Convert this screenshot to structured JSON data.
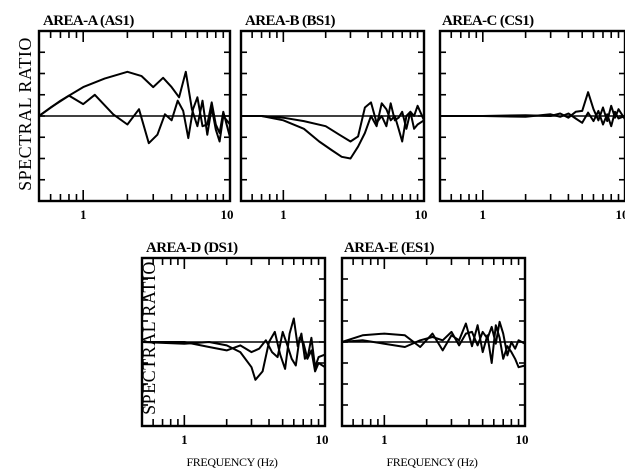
{
  "figure": {
    "ylabel": "SPECTRAL RATIO",
    "xlabel": "FREQUENCY (Hz)"
  },
  "chart_data": [
    {
      "type": "line",
      "title": "AREA-A (AS1)",
      "xscale": "log",
      "xlim": [
        0.5,
        10
      ],
      "ylim": [
        -1,
        1
      ],
      "xticklabels": [
        "1",
        "10"
      ],
      "series": [
        {
          "x": [
            0.5,
            0.7,
            1.0,
            1.4,
            2.0,
            2.5,
            3.0,
            3.5,
            4.0,
            4.5,
            5.0,
            5.5,
            6.0,
            6.5,
            7.0,
            7.5,
            8.0,
            8.5,
            9.0,
            10.0
          ],
          "y": [
            0.0,
            0.18,
            0.34,
            0.44,
            0.52,
            0.47,
            0.34,
            0.45,
            0.34,
            0.22,
            0.52,
            0.08,
            -0.12,
            0.18,
            -0.22,
            0.1,
            -0.16,
            -0.3,
            0.0,
            -0.1
          ]
        },
        {
          "x": [
            0.5,
            0.6,
            0.8,
            1.0,
            1.2,
            1.6,
            2.0,
            2.4,
            2.8,
            3.2,
            3.6,
            4.0,
            4.4,
            4.8,
            5.2,
            5.6,
            6.0,
            6.5,
            7.0,
            7.5,
            8.0,
            8.5,
            9.0,
            10.0
          ],
          "y": [
            0.0,
            0.1,
            0.24,
            0.14,
            0.25,
            0.02,
            -0.1,
            0.08,
            -0.32,
            -0.22,
            0.02,
            -0.05,
            0.18,
            0.06,
            -0.26,
            0.08,
            0.22,
            -0.12,
            -0.1,
            0.16,
            -0.1,
            -0.2,
            0.05,
            -0.25
          ]
        }
      ]
    },
    {
      "type": "line",
      "title": "AREA-B (BS1)",
      "xscale": "log",
      "xlim": [
        0.5,
        10
      ],
      "ylim": [
        -1,
        1
      ],
      "xticklabels": [
        "1",
        "10"
      ],
      "series": [
        {
          "x": [
            0.5,
            0.7,
            1.0,
            1.4,
            2.0,
            2.5,
            3.0,
            3.4,
            3.8,
            4.2,
            4.6,
            5.0,
            5.4,
            5.8,
            6.2,
            6.6,
            7.0,
            7.5,
            8.0,
            8.5,
            9.0,
            10.0
          ],
          "y": [
            0.0,
            0.0,
            -0.02,
            -0.06,
            -0.12,
            -0.22,
            -0.3,
            -0.24,
            0.1,
            0.16,
            -0.08,
            0.0,
            -0.12,
            0.15,
            -0.05,
            -0.02,
            0.05,
            -0.15,
            0.05,
            0.0,
            0.12,
            -0.05
          ]
        },
        {
          "x": [
            0.5,
            0.7,
            1.0,
            1.4,
            1.8,
            2.2,
            2.6,
            3.0,
            3.4,
            3.8,
            4.2,
            4.6,
            5.0,
            5.4,
            5.8,
            6.2,
            6.6,
            7.0,
            7.5,
            8.0,
            8.5,
            9.0,
            10.0
          ],
          "y": [
            0.0,
            0.0,
            -0.05,
            -0.15,
            -0.3,
            -0.4,
            -0.48,
            -0.5,
            -0.36,
            -0.2,
            0.0,
            -0.12,
            0.15,
            0.08,
            -0.05,
            0.0,
            -0.15,
            -0.3,
            0.0,
            0.05,
            -0.15,
            -0.1,
            -0.05
          ]
        }
      ]
    },
    {
      "type": "line",
      "title": "AREA-C (CS1)",
      "xscale": "log",
      "xlim": [
        0.5,
        10
      ],
      "ylim": [
        -1,
        1
      ],
      "xticklabels": [
        "1",
        "10"
      ],
      "series": [
        {
          "x": [
            0.5,
            1.0,
            2.0,
            3.0,
            3.5,
            4.0,
            4.5,
            5.0,
            5.5,
            6.0,
            6.5,
            7.0,
            7.5,
            8.0,
            8.5,
            9.0,
            10.0
          ],
          "y": [
            0.0,
            0.0,
            0.01,
            0.0,
            0.03,
            -0.02,
            0.05,
            0.06,
            0.28,
            0.08,
            -0.05,
            0.1,
            -0.06,
            0.12,
            -0.02,
            0.08,
            -0.04
          ]
        },
        {
          "x": [
            0.5,
            1.0,
            2.0,
            3.0,
            3.5,
            4.0,
            4.5,
            5.0,
            5.5,
            6.0,
            6.5,
            7.0,
            7.5,
            8.0,
            8.5,
            9.0,
            10.0
          ],
          "y": [
            0.0,
            0.0,
            -0.01,
            0.02,
            -0.01,
            0.03,
            -0.03,
            -0.08,
            0.04,
            -0.06,
            0.06,
            -0.1,
            0.02,
            -0.12,
            0.05,
            -0.03,
            0.0
          ]
        }
      ]
    },
    {
      "type": "line",
      "title": "AREA-D (DS1)",
      "xscale": "log",
      "xlim": [
        0.5,
        10
      ],
      "ylim": [
        -1,
        1
      ],
      "xticklabels": [
        "1",
        "10"
      ],
      "series": [
        {
          "x": [
            0.5,
            1.0,
            1.5,
            2.0,
            2.5,
            3.0,
            3.2,
            3.6,
            4.0,
            4.4,
            4.8,
            5.2,
            5.6,
            6.0,
            6.4,
            6.8,
            7.2,
            7.6,
            8.0,
            8.5,
            9.0,
            10.0
          ],
          "y": [
            0.0,
            -0.02,
            0.0,
            -0.04,
            -0.12,
            -0.3,
            -0.45,
            -0.35,
            0.0,
            0.12,
            -0.15,
            -0.32,
            0.1,
            0.28,
            -0.05,
            0.1,
            -0.2,
            -0.15,
            0.05,
            -0.3,
            -0.18,
            -0.15
          ]
        },
        {
          "x": [
            0.5,
            1.0,
            1.5,
            2.0,
            2.5,
            3.0,
            3.4,
            3.8,
            4.2,
            4.6,
            5.0,
            5.4,
            5.8,
            6.2,
            6.6,
            7.0,
            7.5,
            8.0,
            8.5,
            9.0,
            10.0
          ],
          "y": [
            0.0,
            0.0,
            -0.06,
            -0.1,
            -0.04,
            -0.12,
            -0.08,
            0.02,
            -0.12,
            -0.18,
            0.12,
            -0.04,
            -0.2,
            -0.28,
            0.05,
            0.0,
            -0.2,
            -0.1,
            -0.35,
            -0.25,
            -0.3
          ]
        }
      ]
    },
    {
      "type": "line",
      "title": "AREA-E (ES1)",
      "xscale": "log",
      "xlim": [
        0.5,
        10
      ],
      "ylim": [
        -1,
        1
      ],
      "xticklabels": [
        "1",
        "10"
      ],
      "series": [
        {
          "x": [
            0.5,
            0.7,
            1.0,
            1.4,
            1.8,
            2.2,
            2.6,
            3.0,
            3.4,
            3.8,
            4.2,
            4.6,
            5.0,
            5.4,
            5.8,
            6.2,
            6.6,
            7.0,
            7.5,
            8.0,
            8.5,
            9.0,
            10.0
          ],
          "y": [
            0.0,
            0.08,
            0.1,
            0.08,
            -0.06,
            0.1,
            -0.1,
            0.08,
            0.02,
            0.22,
            -0.05,
            0.2,
            -0.12,
            0.08,
            -0.25,
            0.2,
            0.05,
            -0.2,
            -0.05,
            -0.12,
            -0.2,
            -0.3,
            -0.28
          ]
        },
        {
          "x": [
            0.5,
            0.7,
            1.0,
            1.4,
            1.8,
            2.2,
            2.6,
            3.0,
            3.4,
            3.8,
            4.2,
            4.6,
            5.0,
            5.4,
            5.8,
            6.2,
            6.6,
            7.0,
            7.5,
            8.0,
            8.5,
            9.0,
            10.0
          ],
          "y": [
            0.0,
            0.02,
            -0.02,
            -0.06,
            0.02,
            0.06,
            0.02,
            0.12,
            -0.04,
            0.1,
            0.12,
            -0.04,
            0.12,
            0.04,
            0.18,
            -0.02,
            0.24,
            0.1,
            -0.16,
            0.0,
            -0.08,
            0.02,
            -0.02
          ]
        }
      ]
    }
  ]
}
